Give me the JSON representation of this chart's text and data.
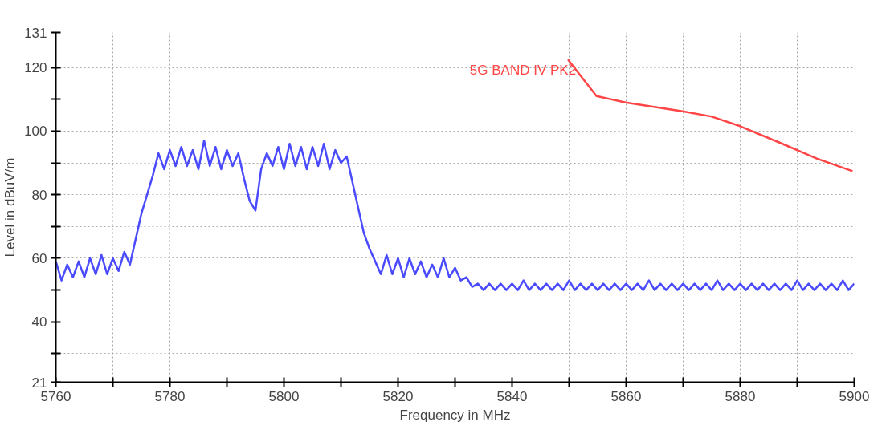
{
  "chart_data": {
    "type": "line",
    "xlabel": "Frequency in MHz",
    "ylabel": "Level in dBuV/m",
    "xlim": [
      5760,
      5900
    ],
    "ylim": [
      21,
      131
    ],
    "xticks": [
      5760,
      {
        "value": 5770,
        "label": null
      },
      5780,
      {
        "value": 5790,
        "label": null
      },
      5800,
      {
        "value": 5810,
        "label": null
      },
      5820,
      {
        "value": 5830,
        "label": null
      },
      5840,
      {
        "value": 5850,
        "label": null
      },
      5860,
      {
        "value": 5870,
        "label": null
      },
      5880,
      {
        "value": 5890,
        "label": null
      },
      5900
    ],
    "yticks": [
      21,
      {
        "value": 30,
        "label": null
      },
      40,
      {
        "value": 50,
        "label": null
      },
      60,
      {
        "value": 70,
        "label": null
      },
      80,
      {
        "value": 90,
        "label": null
      },
      100,
      {
        "value": 110,
        "label": null
      },
      120,
      131
    ],
    "grid": true,
    "series": [
      {
        "color": "#4a4aff",
        "x": [
          5760,
          5761,
          5762,
          5763,
          5764,
          5765,
          5766,
          5767,
          5768,
          5769,
          5770,
          5771,
          5772,
          5773,
          5774,
          5775,
          5776,
          5777,
          5778,
          5779,
          5780,
          5781,
          5782,
          5783,
          5784,
          5785,
          5786,
          5787,
          5788,
          5789,
          5790,
          5791,
          5792,
          5793,
          5794,
          5795,
          5796,
          5797,
          5798,
          5799,
          5800,
          5801,
          5802,
          5803,
          5804,
          5805,
          5806,
          5807,
          5808,
          5809,
          5810,
          5811,
          5812,
          5813,
          5814,
          5815,
          5816,
          5817,
          5818,
          5819,
          5820,
          5821,
          5822,
          5823,
          5824,
          5825,
          5826,
          5827,
          5828,
          5829,
          5830,
          5831,
          5832,
          5833,
          5834,
          5835,
          5836,
          5837,
          5838,
          5839,
          5840,
          5841,
          5842,
          5843,
          5844,
          5845,
          5846,
          5847,
          5848,
          5849,
          5850,
          5851,
          5852,
          5853,
          5854,
          5855,
          5856,
          5857,
          5858,
          5859,
          5860,
          5861,
          5862,
          5863,
          5864,
          5865,
          5866,
          5867,
          5868,
          5869,
          5870,
          5871,
          5872,
          5873,
          5874,
          5875,
          5876,
          5877,
          5878,
          5879,
          5880,
          5881,
          5882,
          5883,
          5884,
          5885,
          5886,
          5887,
          5888,
          5889,
          5890,
          5891,
          5892,
          5893,
          5894,
          5895,
          5896,
          5897,
          5898,
          5899,
          5900
        ],
        "values": [
          59,
          53,
          58,
          54,
          59,
          54,
          60,
          55,
          61,
          55,
          60,
          56,
          62,
          58,
          66,
          74,
          80,
          86,
          93,
          88,
          94,
          89,
          95,
          89,
          94,
          88,
          97,
          89,
          95,
          88,
          94,
          89,
          93,
          85,
          78,
          75,
          88,
          93,
          89,
          95,
          88,
          96,
          89,
          95,
          88,
          95,
          89,
          96,
          88,
          94,
          90,
          92,
          84,
          76,
          68,
          63,
          59,
          55,
          61,
          55,
          60,
          54,
          60,
          55,
          59,
          54,
          58,
          54,
          60,
          54,
          57,
          53,
          54,
          51,
          52,
          50,
          52,
          50,
          52,
          50,
          52,
          50,
          53,
          50,
          52,
          50,
          52,
          50,
          52,
          50,
          53,
          50,
          52,
          50,
          52,
          50,
          52,
          50,
          52,
          50,
          52,
          50,
          52,
          50,
          53,
          50,
          52,
          50,
          52,
          50,
          52,
          50,
          52,
          50,
          52,
          50,
          53,
          50,
          52,
          50,
          52,
          50,
          52,
          50,
          52,
          50,
          52,
          50,
          52,
          50,
          53,
          50,
          52,
          50,
          52,
          50,
          52,
          50,
          53,
          50,
          52
        ]
      },
      {
        "name": "5G BAND IV PK2",
        "color": "#ff4545",
        "x": [
          5849.8,
          5854.8,
          5859.9,
          5869.9,
          5874.9,
          5879.9,
          5887.4,
          5893.5,
          5899.7
        ],
        "values": [
          122.5,
          111.0,
          109.0,
          106.2,
          104.6,
          101.6,
          96.0,
          91.3,
          87.4
        ]
      }
    ]
  }
}
